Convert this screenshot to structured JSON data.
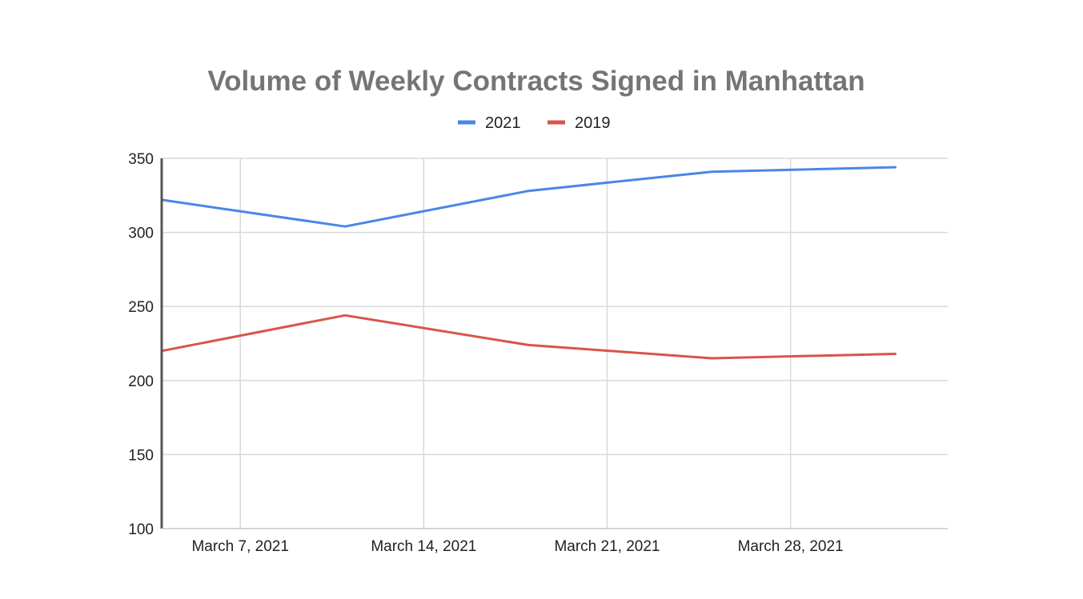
{
  "chart_data": {
    "type": "line",
    "title": "Volume of Weekly Contracts Signed in Manhattan",
    "xlabel": "",
    "ylabel": "",
    "ylim": [
      100,
      350
    ],
    "yticks": [
      100,
      150,
      200,
      250,
      300,
      350
    ],
    "xlim": [
      "2021-03-04",
      "2021-04-03"
    ],
    "xticks": [
      {
        "date": "2021-03-07",
        "label": "March 7, 2021"
      },
      {
        "date": "2021-03-14",
        "label": "March 14, 2021"
      },
      {
        "date": "2021-03-21",
        "label": "March 21, 2021"
      },
      {
        "date": "2021-03-28",
        "label": "March 28, 2021"
      }
    ],
    "x": [
      "2021-03-04",
      "2021-03-11",
      "2021-03-18",
      "2021-03-25",
      "2021-04-01"
    ],
    "series": [
      {
        "name": "2021",
        "color": "#4a86e8",
        "values": [
          322,
          304,
          328,
          341,
          344
        ]
      },
      {
        "name": "2019",
        "color": "#d9544a",
        "values": [
          220,
          244,
          224,
          215,
          218
        ]
      }
    ],
    "grid": true,
    "legend_position": "top-center"
  }
}
